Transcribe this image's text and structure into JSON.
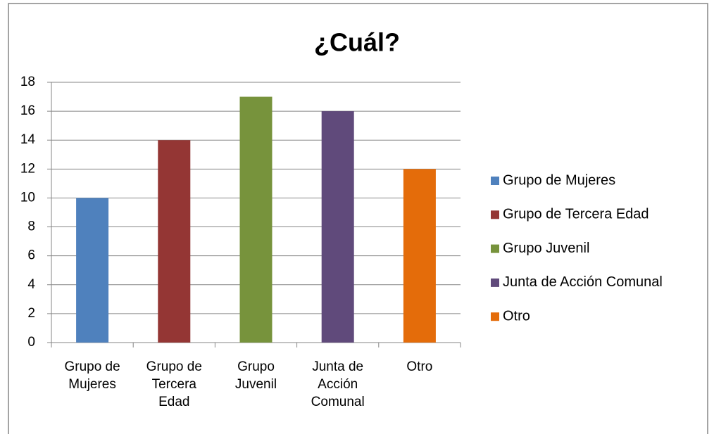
{
  "chart_data": {
    "type": "bar",
    "title": "¿Cuál?",
    "categories": [
      "Grupo de Mujeres",
      "Grupo de Tercera Edad",
      "Grupo Juvenil",
      "Junta de Acción Comunal",
      "Otro"
    ],
    "values": [
      10,
      14,
      17,
      16,
      12
    ],
    "colors": [
      "#4f81bd",
      "#943634",
      "#77933c",
      "#604a7b",
      "#e46c0a"
    ],
    "ylim": [
      0,
      18
    ],
    "yticks": [
      0,
      2,
      4,
      6,
      8,
      10,
      12,
      14,
      16,
      18
    ],
    "grid": true,
    "legend": "right"
  }
}
